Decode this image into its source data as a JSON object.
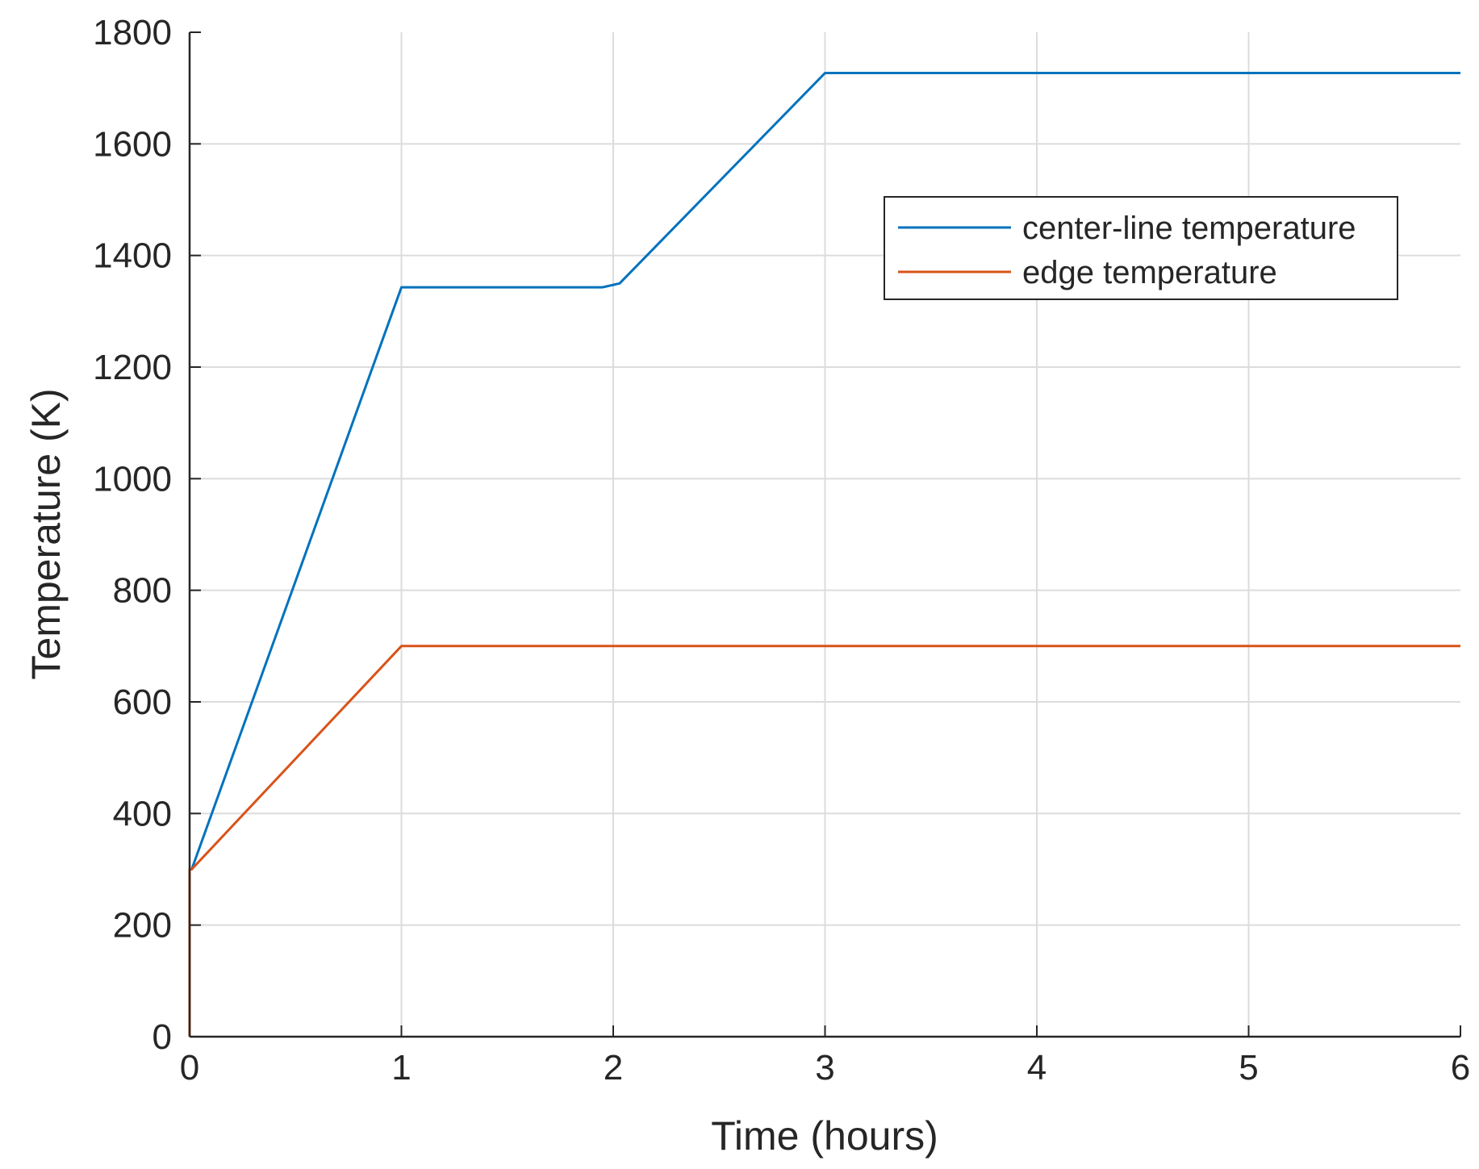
{
  "chart_data": {
    "type": "line",
    "title": "",
    "xlabel": "Time (hours)",
    "ylabel": "Temperature (K)",
    "xlim": [
      0,
      6
    ],
    "ylim": [
      0,
      1800
    ],
    "xticks": [
      0,
      1,
      2,
      3,
      4,
      5,
      6
    ],
    "yticks": [
      0,
      200,
      400,
      600,
      800,
      1000,
      1200,
      1400,
      1600,
      1800
    ],
    "grid": true,
    "legend_position": "upper-right",
    "series": [
      {
        "name": "center-line temperature",
        "color": "#0072BD",
        "x": [
          0,
          0,
          0.01,
          1,
          1.95,
          2.03,
          3,
          6
        ],
        "y": [
          0,
          300,
          300,
          1343,
          1343,
          1350,
          1727,
          1727
        ]
      },
      {
        "name": "edge temperature",
        "color": "#D95319",
        "x": [
          0,
          0,
          0.01,
          1,
          6
        ],
        "y": [
          0,
          300,
          300,
          700,
          700
        ]
      }
    ]
  }
}
